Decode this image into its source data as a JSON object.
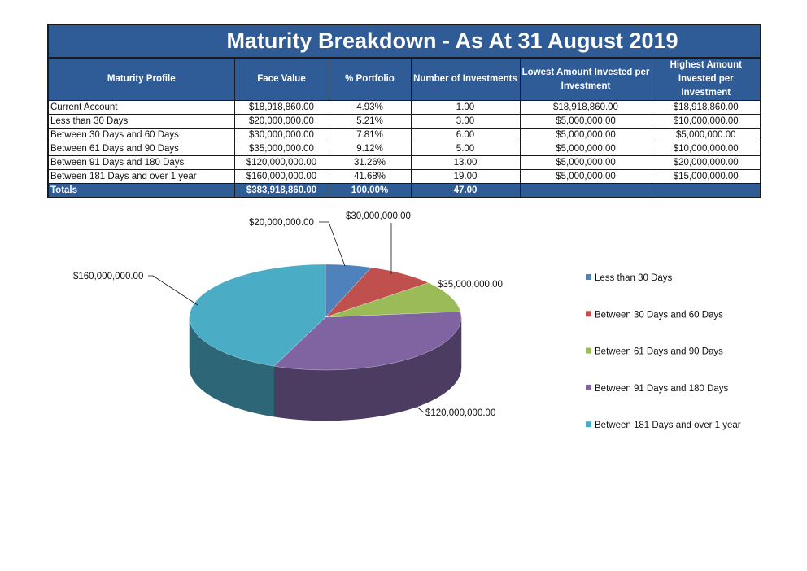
{
  "table": {
    "title": "Maturity Breakdown - As At 31 August 2019",
    "headers": [
      "Maturity Profile",
      "Face Value",
      "% Portfolio",
      "Number of Investments",
      "Lowest Amount Invested per Investment",
      "Highest Amount Invested per Investment"
    ],
    "rows": [
      [
        "Current Account",
        "$18,918,860.00",
        "4.93%",
        "1.00",
        "$18,918,860.00",
        "$18,918,860.00"
      ],
      [
        "Less than 30 Days",
        "$20,000,000.00",
        "5.21%",
        "3.00",
        "$5,000,000.00",
        "$10,000,000.00"
      ],
      [
        "Between 30 Days and 60 Days",
        "$30,000,000.00",
        "7.81%",
        "6.00",
        "$5,000,000.00",
        "$5,000,000.00"
      ],
      [
        "Between 61 Days and 90 Days",
        "$35,000,000.00",
        "9.12%",
        "5.00",
        "$5,000,000.00",
        "$10,000,000.00"
      ],
      [
        "Between 91 Days and 180 Days",
        "$120,000,000.00",
        "31.26%",
        "13.00",
        "$5,000,000.00",
        "$20,000,000.00"
      ],
      [
        "Between 181 Days and over 1 year",
        "$160,000,000.00",
        "41.68%",
        "19.00",
        "$5,000,000.00",
        "$15,000,000.00"
      ]
    ],
    "totals": [
      "Totals",
      "$383,918,860.00",
      "100.00%",
      "47.00",
      "",
      ""
    ]
  },
  "chart_data": {
    "type": "pie",
    "style": "3d",
    "categories": [
      "Less than 30 Days",
      "Between 30 Days and 60 Days",
      "Between 61 Days and 90 Days",
      "Between 91 Days and 180 Days",
      "Between 181 Days and over 1 year"
    ],
    "values": [
      20000000,
      30000000,
      35000000,
      120000000,
      160000000
    ],
    "data_labels": [
      "$20,000,000.00",
      "$30,000,000.00",
      "$35,000,000.00",
      "$120,000,000.00",
      "$160,000,000.00"
    ],
    "colors": [
      "#4F81BD",
      "#C0504D",
      "#9BBB59",
      "#8064A2",
      "#4BACC6"
    ],
    "legend_position": "right"
  }
}
